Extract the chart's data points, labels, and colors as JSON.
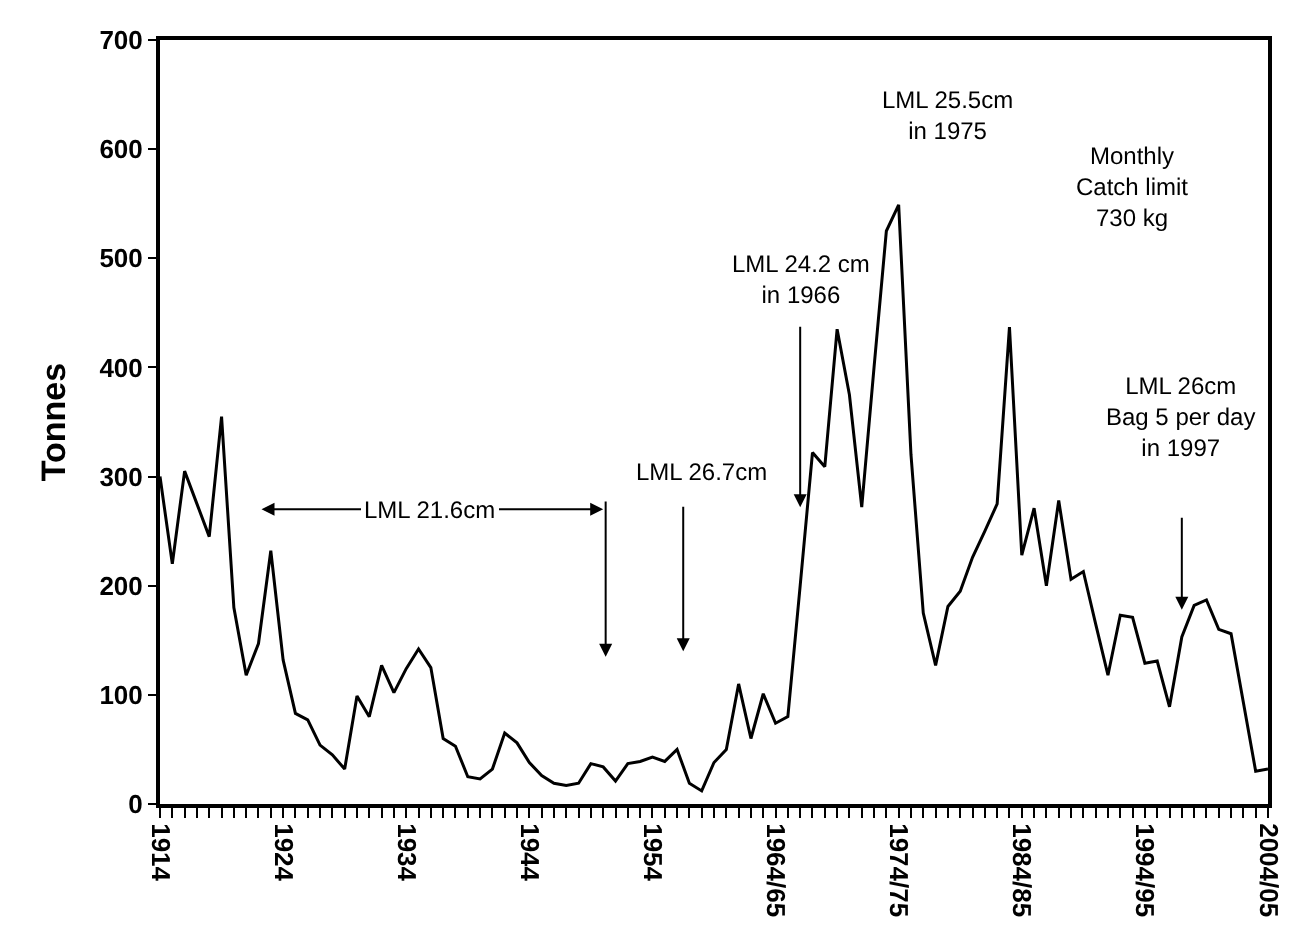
{
  "chart_data": {
    "type": "line",
    "ylabel": "Tonnes",
    "categories": [
      "1914",
      null,
      null,
      null,
      null,
      null,
      null,
      null,
      null,
      null,
      "1924",
      null,
      null,
      null,
      null,
      null,
      null,
      null,
      null,
      null,
      "1934",
      null,
      null,
      null,
      null,
      null,
      null,
      null,
      null,
      null,
      "1944",
      null,
      null,
      null,
      null,
      null,
      null,
      null,
      null,
      null,
      "1954",
      null,
      null,
      null,
      null,
      null,
      null,
      null,
      null,
      null,
      "1964/65",
      null,
      null,
      null,
      null,
      null,
      null,
      null,
      null,
      null,
      "1974/75",
      null,
      null,
      null,
      null,
      null,
      null,
      null,
      null,
      null,
      "1984/85",
      null,
      null,
      null,
      null,
      null,
      null,
      null,
      null,
      null,
      "1994/95",
      null,
      null,
      null,
      null,
      null,
      null,
      null,
      null,
      null,
      "2004/05"
    ],
    "series": [
      {
        "color": "#000000",
        "values": [
          300,
          220,
          305,
          275,
          245,
          355,
          180,
          118,
          147,
          232,
          132,
          83,
          77,
          54,
          45,
          32,
          99,
          80,
          127,
          102,
          124,
          142,
          125,
          60,
          53,
          25,
          23,
          32,
          65,
          56,
          38,
          26,
          19,
          17,
          19,
          37,
          34,
          21,
          37,
          39,
          43,
          39,
          50,
          19,
          12,
          38,
          50,
          110,
          60,
          101,
          74,
          80,
          200,
          322,
          309,
          435,
          375,
          272,
          400,
          525,
          549,
          320,
          175,
          127,
          181,
          195,
          226,
          250,
          275,
          437,
          228,
          271,
          200,
          278,
          206,
          213,
          165,
          118,
          173,
          171,
          129,
          131,
          89,
          153,
          182,
          187,
          160,
          156,
          93,
          30,
          32
        ]
      }
    ],
    "ylim": [
      0,
      700
    ],
    "yticks": [
      0,
      100,
      200,
      300,
      400,
      500,
      600,
      700
    ],
    "grid": false,
    "marker": "none",
    "line_style": "solid",
    "annotations": [
      "LML 21.6cm",
      "LML 26.7cm",
      {
        "text": "LML 24.2 cm\nin 1966",
        "y": 272
      },
      "LML 25.5cm\nin 1975",
      "Monthly\nCatch limit\n730 kg",
      "LML 26cm\nBag 5 per day\nin 1997"
    ]
  }
}
